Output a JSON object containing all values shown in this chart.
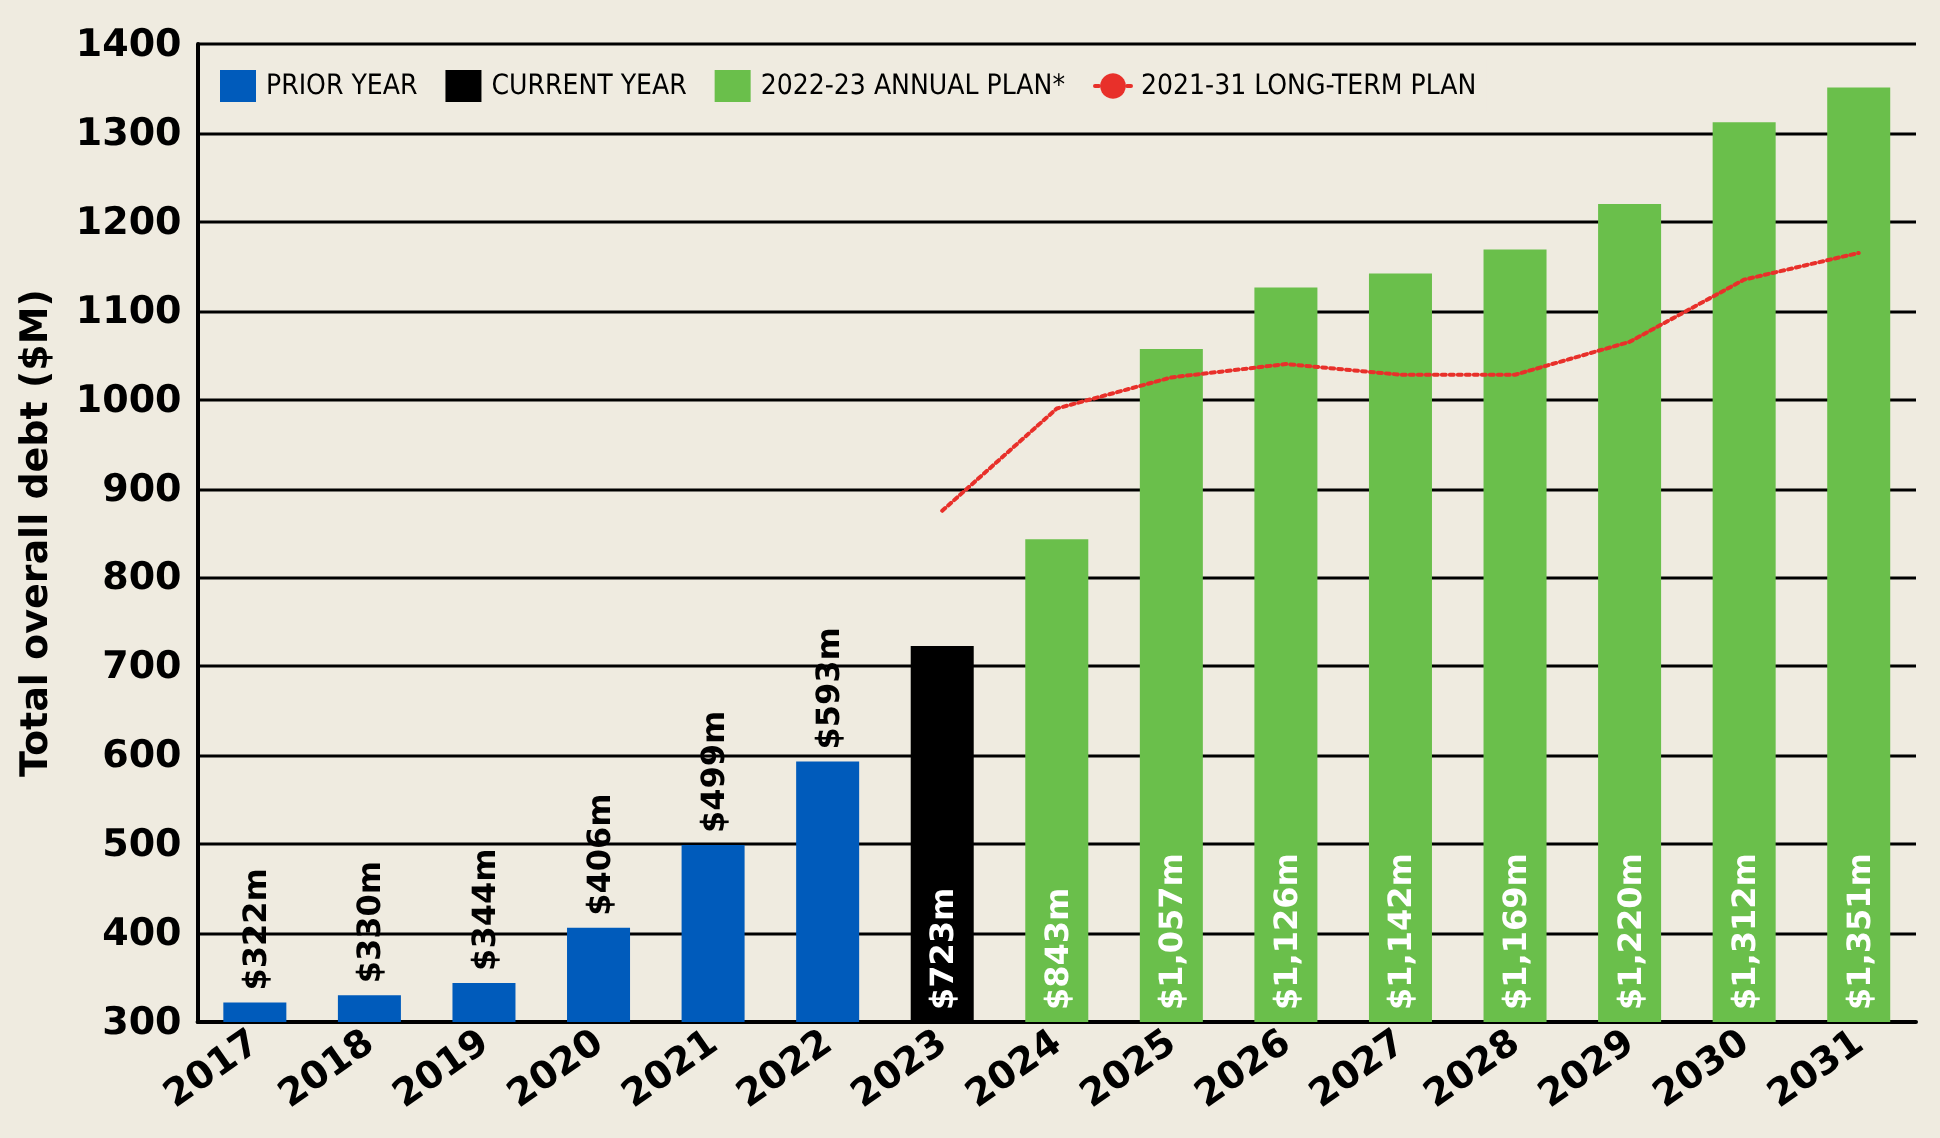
{
  "chart_data": {
    "type": "bar",
    "ylabel": "Total overall debt ($M)",
    "categories": [
      "2017",
      "2018",
      "2019",
      "2020",
      "2021",
      "2022",
      "2023",
      "2024",
      "2025",
      "2026",
      "2027",
      "2028",
      "2029",
      "2030",
      "2031"
    ],
    "series": [
      {
        "name": "PRIOR YEAR",
        "color": "#005bbb",
        "values": [
          322,
          330,
          344,
          406,
          499,
          593,
          null,
          null,
          null,
          null,
          null,
          null,
          null,
          null,
          null
        ],
        "value_labels": [
          "$322m",
          "$330m",
          "$344m",
          "$406m",
          "$499m",
          "$593m",
          null,
          null,
          null,
          null,
          null,
          null,
          null,
          null,
          null
        ]
      },
      {
        "name": "CURRENT YEAR",
        "color": "#000000",
        "values": [
          null,
          null,
          null,
          null,
          null,
          null,
          723,
          null,
          null,
          null,
          null,
          null,
          null,
          null,
          null
        ],
        "value_labels": [
          null,
          null,
          null,
          null,
          null,
          null,
          "$723m",
          null,
          null,
          null,
          null,
          null,
          null,
          null,
          null
        ]
      },
      {
        "name": "2022-23 ANNUAL PLAN*",
        "color": "#6abf4b",
        "values": [
          null,
          null,
          null,
          null,
          null,
          null,
          null,
          843,
          1057,
          1126,
          1142,
          1169,
          1220,
          1312,
          1351
        ],
        "value_labels": [
          null,
          null,
          null,
          null,
          null,
          null,
          null,
          "$843m",
          "$1,057m",
          "$1,126m",
          "$1,142m",
          "$1,169m",
          "$1,220m",
          "$1,312m",
          "$1,351m"
        ]
      },
      {
        "name": "2021-31 LONG-TERM PLAN",
        "type": "line",
        "color": "#e8302a",
        "line_style": "dotted",
        "marker": "none",
        "values": [
          null,
          null,
          null,
          null,
          null,
          null,
          875,
          990,
          1025,
          1040,
          1028,
          1028,
          1065,
          1135,
          1165
        ]
      }
    ],
    "ylim": [
      300,
      1400
    ],
    "yticks": [
      300,
      400,
      500,
      600,
      700,
      800,
      900,
      1000,
      1100,
      1200,
      1300,
      1400
    ],
    "grid": "y",
    "legend": "top left"
  }
}
